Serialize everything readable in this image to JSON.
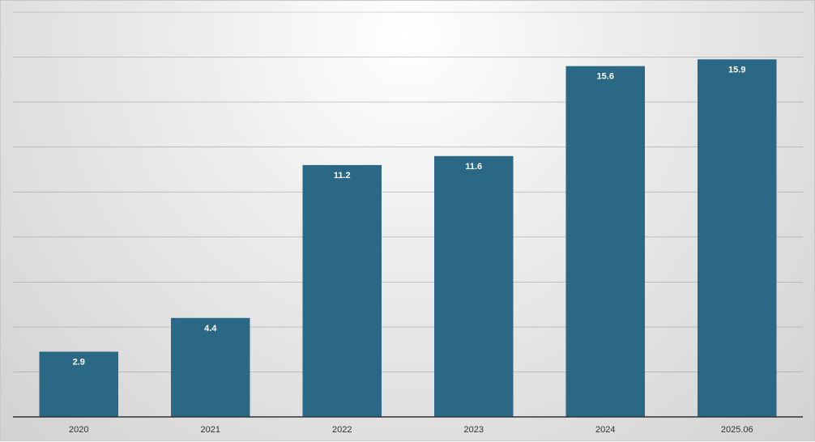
{
  "chart_data": {
    "type": "bar",
    "categories": [
      "2020",
      "2021",
      "2022",
      "2023",
      "2024",
      "2025.06"
    ],
    "values": [
      2.9,
      4.4,
      11.2,
      11.6,
      15.6,
      15.9
    ],
    "ylim": [
      0,
      18
    ],
    "grid": true,
    "show_y_tick_labels": false,
    "colors": {
      "bar": "#2a6886",
      "axis": "#333333",
      "grid": "#8a8a8a",
      "label": "#ffffff"
    }
  }
}
